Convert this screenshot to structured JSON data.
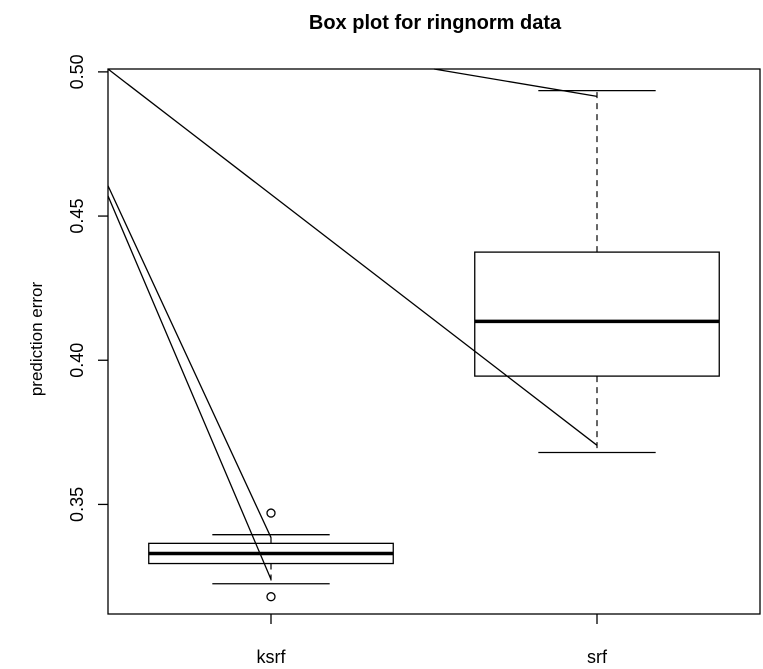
{
  "chart_data": {
    "type": "box",
    "title": "Box plot for ringnorm data",
    "xlabel": "",
    "ylabel": "prediction error",
    "ylim": [
      0.312,
      0.501
    ],
    "yticks": [
      0.35,
      0.4,
      0.45,
      0.5
    ],
    "ytick_labels": [
      "0.35",
      "0.40",
      "0.45",
      "0.50"
    ],
    "categories": [
      "ksrf",
      "srf"
    ],
    "boxes": [
      {
        "name": "ksrf",
        "whisker_low": 0.3225,
        "q1": 0.3295,
        "median": 0.333,
        "q3": 0.3365,
        "whisker_high": 0.3395,
        "outliers": [
          0.347,
          0.318
        ]
      },
      {
        "name": "srf",
        "whisker_low": 0.368,
        "q1": 0.3945,
        "median": 0.4135,
        "q3": 0.4375,
        "whisker_high": 0.4935,
        "outliers": []
      }
    ],
    "connecting_lines": [
      [
        [
          0.0,
          0.4605
        ],
        [
          0.5,
          0.3385
        ]
      ],
      [
        [
          0.0,
          0.457
        ],
        [
          0.5,
          0.324
        ]
      ],
      [
        [
          0.0,
          0.501
        ],
        [
          1.5,
          0.3705
        ]
      ],
      [
        [
          1.0,
          0.501
        ],
        [
          1.5,
          0.4915
        ]
      ]
    ],
    "grid": false,
    "legend": "none"
  }
}
